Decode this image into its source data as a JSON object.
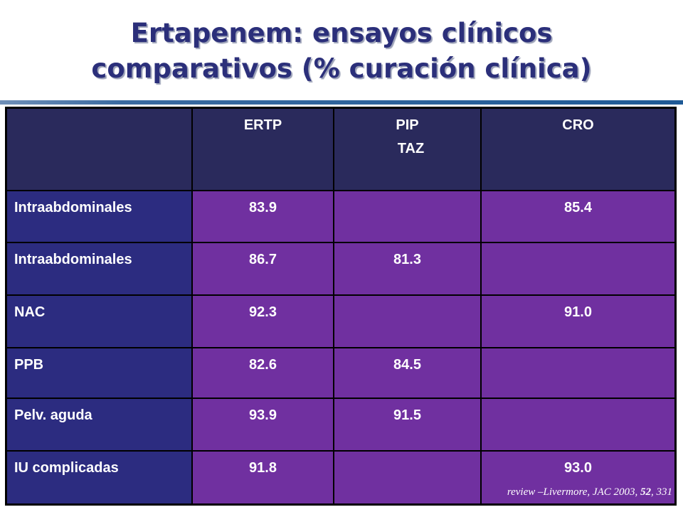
{
  "title": {
    "line1": "Ertapenem: ensayos clínicos",
    "line2": "comparativos (% curación clínica)"
  },
  "table": {
    "headers": [
      "",
      "ERTP",
      "PIP",
      "CRO"
    ],
    "header_pip_line2": "TAZ",
    "rows": [
      {
        "label": "Intraabdominales",
        "ertp": "83.9",
        "piptaz": "",
        "cro": "85.4"
      },
      {
        "label": "Intraabdominales",
        "ertp": "86.7",
        "piptaz": "81.3",
        "cro": ""
      },
      {
        "label": "NAC",
        "ertp": "92.3",
        "piptaz": "",
        "cro": "91.0"
      },
      {
        "label": "PPB",
        "ertp": "82.6",
        "piptaz": "84.5",
        "cro": ""
      },
      {
        "label": "Pelv. aguda",
        "ertp": "93.9",
        "piptaz": "91.5",
        "cro": ""
      },
      {
        "label": "IU complicadas",
        "ertp": "91.8",
        "piptaz": "",
        "cro": "93.0"
      }
    ]
  },
  "citation": {
    "text": "review –Livermore, JAC 2003, ",
    "volume": "52",
    "pages": ", 331"
  },
  "colors": {
    "title": "#2b2f7a",
    "header_bg": "#2a2a5c",
    "label_bg": "#2c2c80",
    "value_bg": "#7030a0",
    "rule": "#1f5a96"
  }
}
